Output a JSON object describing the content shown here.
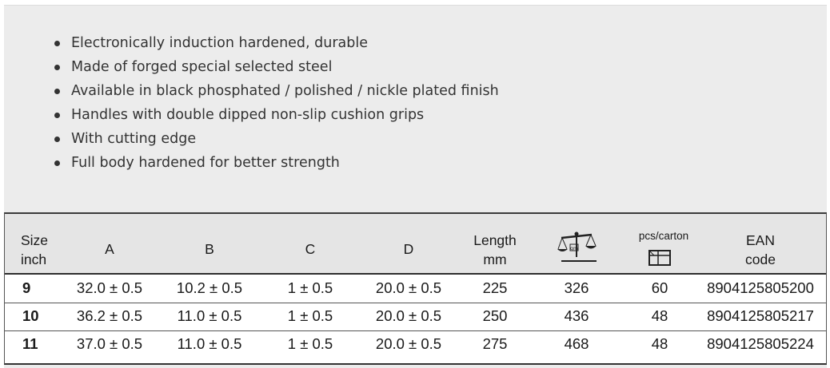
{
  "features": [
    "Electronically induction hardened, durable",
    "Made of forged special selected steel",
    "Available in black phosphated / polished / nickle plated finish",
    "Handles with double dipped non-slip cushion grips",
    "With cutting edge",
    "Full body hardened for better strength"
  ],
  "table": {
    "headers": {
      "size_line1": "Size",
      "size_line2": "inch",
      "a": "A",
      "b": "B",
      "c": "C",
      "d": "D",
      "length_line1": "Length",
      "length_line2": "mm",
      "weight_icon": "scale-icon",
      "weight_icon_text": "gm",
      "pcs": "pcs/carton",
      "pcs_icon": "carton-box-icon",
      "ean_line1": "EAN",
      "ean_line2": "code"
    },
    "rows": [
      {
        "size": "9",
        "a": "32.0 ± 0.5",
        "b": "10.2 ± 0.5",
        "c": "1 ± 0.5",
        "d": "20.0 ± 0.5",
        "length": "225",
        "weight": "326",
        "pcs": "60",
        "ean": "8904125805200"
      },
      {
        "size": "10",
        "a": "36.2 ± 0.5",
        "b": "11.0 ± 0.5",
        "c": "1 ± 0.5",
        "d": "20.0 ± 0.5",
        "length": "250",
        "weight": "436",
        "pcs": "48",
        "ean": "8904125805217"
      },
      {
        "size": "11",
        "a": "37.0 ± 0.5",
        "b": "11.0 ± 0.5",
        "c": "1 ± 0.5",
        "d": "20.0 ± 0.5",
        "length": "275",
        "weight": "468",
        "pcs": "48",
        "ean": "8904125805224"
      }
    ]
  }
}
